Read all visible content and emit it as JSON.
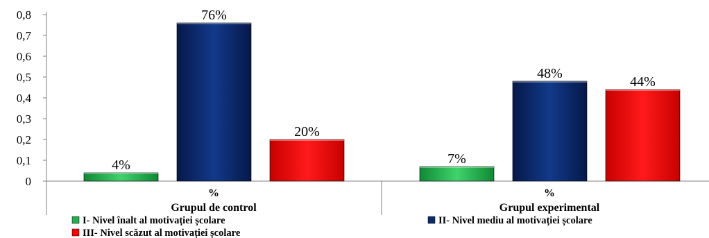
{
  "chart_data": {
    "type": "bar",
    "ylim": [
      0,
      0.8
    ],
    "yticks": [
      "0",
      "0,1",
      "0,2",
      "0,3",
      "0,4",
      "0,5",
      "0,6",
      "0,7",
      "0,8"
    ],
    "groups": [
      {
        "name": "Grupul de control",
        "category": "%"
      },
      {
        "name": "Grupul experimental",
        "category": "%"
      }
    ],
    "series": [
      {
        "name": "I- Nivel înalt al motivației școlare",
        "color": "#22b14c",
        "values": [
          0.04,
          0.07
        ],
        "labels": [
          "4%",
          "7%"
        ]
      },
      {
        "name": "II- Nivel mediu al motivației școlare",
        "color": "#0d2a6b",
        "values": [
          0.76,
          0.48
        ],
        "labels": [
          "76%",
          "48%"
        ]
      },
      {
        "name": "III- Nivel scăzut al motivației școlare",
        "color": "#ff0000",
        "values": [
          0.2,
          0.44
        ],
        "labels": [
          "20%",
          "44%"
        ]
      }
    ],
    "grid": false,
    "legend": "bottom"
  }
}
